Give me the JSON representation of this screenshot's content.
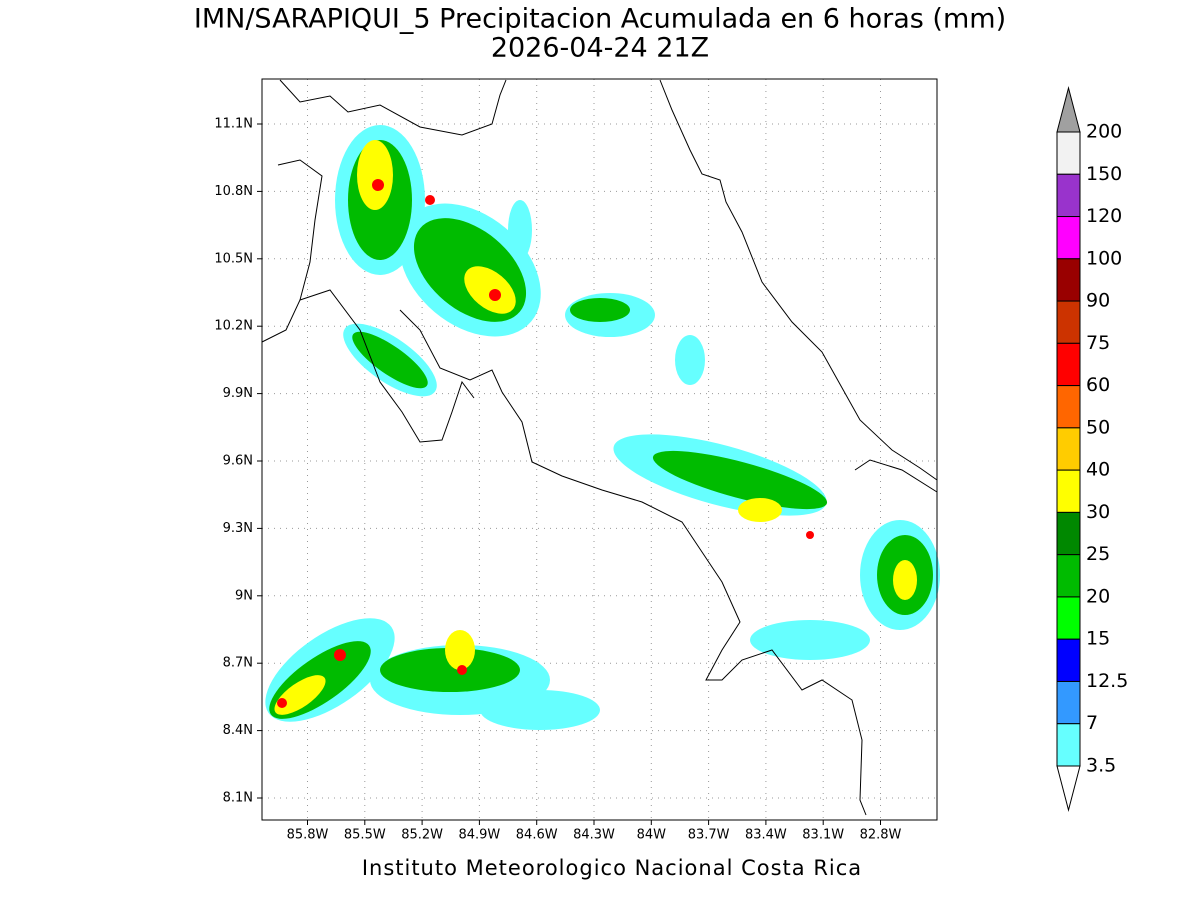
{
  "header": {
    "title": "IMN/SARAPIQUI_5 Precipitacion Acumulada en 6 horas (mm)",
    "subtitle": "2026-04-24 21Z"
  },
  "map": {
    "x_labels": [
      "85.8W",
      "85.5W",
      "85.2W",
      "84.9W",
      "84.6W",
      "84.3W",
      "84W",
      "83.7W",
      "83.4W",
      "83.1W",
      "82.8W"
    ],
    "y_labels": [
      "11.1N",
      "10.8N",
      "10.5N",
      "10.2N",
      "9.9N",
      "9.6N",
      "9.3N",
      "9N",
      "8.7N",
      "8.4N",
      "8.1N"
    ]
  },
  "colorbar": {
    "levels": [
      "200",
      "150",
      "120",
      "100",
      "90",
      "75",
      "60",
      "50",
      "40",
      "30",
      "25",
      "20",
      "15",
      "12.5",
      "7",
      "3.5"
    ],
    "colors": [
      "#f2f2f2",
      "#9933cc",
      "#ff00ff",
      "#990000",
      "#cc3300",
      "#ff0000",
      "#ff6600",
      "#ffcc00",
      "#ffff00",
      "#008800",
      "#00bb00",
      "#00ff00",
      "#0000ff",
      "#3399ff",
      "#66ffff"
    ],
    "over_color": "#a0a0a0",
    "under_color": "#ffffff"
  },
  "footer": {
    "credit": "Instituto Meteorologico Nacional Costa Rica"
  }
}
